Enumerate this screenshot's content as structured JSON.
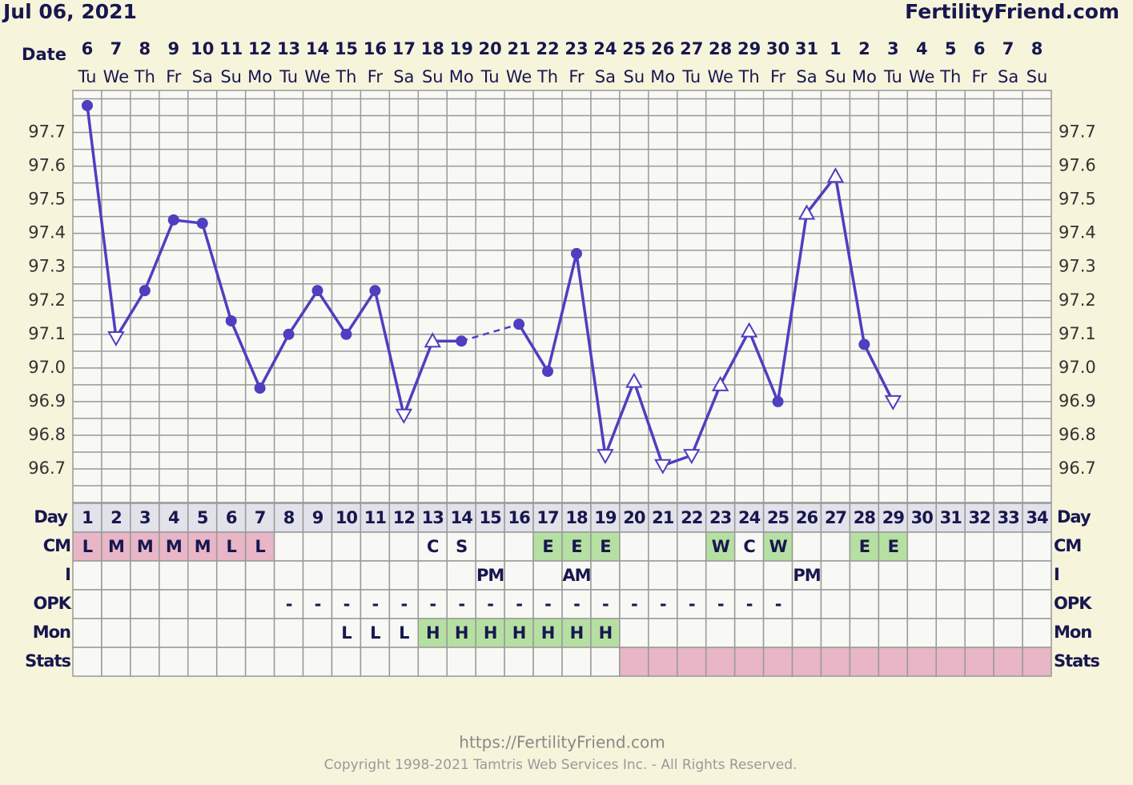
{
  "header": {
    "date": "Jul 06, 2021",
    "site": "FertilityFriend.com"
  },
  "footer": {
    "url": "https://FertilityFriend.com",
    "copyright": "Copyright 1998-2021 Tamtris Web Services Inc. - All Rights Reserved."
  },
  "chart_data": {
    "type": "line",
    "date_label": "Date",
    "day_label": "Day",
    "dates": [
      "6",
      "7",
      "8",
      "9",
      "10",
      "11",
      "12",
      "13",
      "14",
      "15",
      "16",
      "17",
      "18",
      "19",
      "20",
      "21",
      "22",
      "23",
      "24",
      "25",
      "26",
      "27",
      "28",
      "29",
      "30",
      "31",
      "1",
      "2",
      "3",
      "4",
      "5",
      "6",
      "7",
      "8"
    ],
    "weekdays": [
      "Tu",
      "We",
      "Th",
      "Fr",
      "Sa",
      "Su",
      "Mo",
      "Tu",
      "We",
      "Th",
      "Fr",
      "Sa",
      "Su",
      "Mo",
      "Tu",
      "We",
      "Th",
      "Fr",
      "Sa",
      "Su",
      "Mo",
      "Tu",
      "We",
      "Th",
      "Fr",
      "Sa",
      "Su",
      "Mo",
      "Tu",
      "We",
      "Th",
      "Fr",
      "Sa",
      "Su"
    ],
    "categories": [
      "1",
      "2",
      "3",
      "4",
      "5",
      "6",
      "7",
      "8",
      "9",
      "10",
      "11",
      "12",
      "13",
      "14",
      "15",
      "16",
      "17",
      "18",
      "19",
      "20",
      "21",
      "22",
      "23",
      "24",
      "25",
      "26",
      "27",
      "28",
      "29",
      "30",
      "31",
      "32",
      "33",
      "34"
    ],
    "values": [
      97.78,
      97.09,
      97.23,
      97.44,
      97.43,
      97.14,
      96.94,
      97.1,
      97.23,
      97.1,
      97.23,
      96.86,
      97.08,
      97.08,
      null,
      97.13,
      96.99,
      97.34,
      96.74,
      96.96,
      96.71,
      96.74,
      96.95,
      97.11,
      96.9,
      97.46,
      97.57,
      97.07,
      96.9,
      null,
      null,
      null,
      null,
      null
    ],
    "markers": [
      "circle",
      "down",
      "circle",
      "circle",
      "circle",
      "circle",
      "circle",
      "circle",
      "circle",
      "circle",
      "circle",
      "down",
      "up",
      "circle",
      null,
      "circle",
      "circle",
      "circle",
      "down",
      "up",
      "down",
      "down",
      "up",
      "up",
      "circle",
      "up",
      "up",
      "circle",
      "down",
      null,
      null,
      null,
      null,
      null
    ],
    "color": "#4d3fc0",
    "gap_bridge": "dashed",
    "ylim": [
      96.6,
      97.825
    ],
    "yticks": [
      {
        "value": 96.7,
        "label": "96.7"
      },
      {
        "value": 96.8,
        "label": "96.8"
      },
      {
        "value": 96.9,
        "label": "96.9"
      },
      {
        "value": 97.0,
        "label": "97.0"
      },
      {
        "value": 97.1,
        "label": "97.1"
      },
      {
        "value": 97.2,
        "label": "97.2"
      },
      {
        "value": 97.3,
        "label": "97.3"
      },
      {
        "value": 97.4,
        "label": "97.4"
      },
      {
        "value": 97.5,
        "label": "97.5"
      },
      {
        "value": 97.6,
        "label": "97.6"
      },
      {
        "value": 97.7,
        "label": "97.7"
      }
    ],
    "minor_yticks": [
      96.65,
      96.75,
      96.85,
      96.95,
      97.05,
      97.15,
      97.25,
      97.35,
      97.45,
      97.55,
      97.65,
      97.75,
      97.8
    ],
    "grid": true
  },
  "rows": [
    {
      "label": "CM",
      "cells": [
        "L",
        "M",
        "M",
        "M",
        "M",
        "L",
        "L",
        null,
        null,
        null,
        null,
        null,
        "C",
        "S",
        null,
        null,
        "E",
        "E",
        "E",
        null,
        null,
        null,
        "W",
        "C",
        "W",
        null,
        null,
        "E",
        "E",
        null,
        null,
        null,
        null,
        null
      ],
      "fills": [
        "#e8b6c6",
        "#e8b6c6",
        "#e8b6c6",
        "#e8b6c6",
        "#e8b6c6",
        "#e8b6c6",
        "#e8b6c6",
        null,
        null,
        null,
        null,
        null,
        null,
        null,
        null,
        null,
        "#b6e0a2",
        "#b6e0a2",
        "#b6e0a2",
        null,
        null,
        null,
        "#b6e0a2",
        null,
        "#b6e0a2",
        null,
        null,
        "#b6e0a2",
        "#b6e0a2",
        null,
        null,
        null,
        null,
        null
      ]
    },
    {
      "label": "I",
      "cells": [
        null,
        null,
        null,
        null,
        null,
        null,
        null,
        null,
        null,
        null,
        null,
        null,
        null,
        null,
        "PM",
        null,
        null,
        "AM",
        null,
        null,
        null,
        null,
        null,
        null,
        null,
        "PM",
        null,
        null,
        null,
        null,
        null,
        null,
        null,
        null
      ],
      "fills": [
        null,
        null,
        null,
        null,
        null,
        null,
        null,
        null,
        null,
        null,
        null,
        null,
        null,
        null,
        null,
        null,
        null,
        null,
        null,
        null,
        null,
        null,
        null,
        null,
        null,
        null,
        null,
        null,
        null,
        null,
        null,
        null,
        null,
        null
      ]
    },
    {
      "label": "OPK",
      "cells": [
        null,
        null,
        null,
        null,
        null,
        null,
        null,
        "-",
        "-",
        "-",
        "-",
        "-",
        "-",
        "-",
        "-",
        "-",
        "-",
        "-",
        "-",
        "-",
        "-",
        "-",
        "-",
        "-",
        "-",
        null,
        null,
        null,
        null,
        null,
        null,
        null,
        null,
        null
      ],
      "fills": [
        null,
        null,
        null,
        null,
        null,
        null,
        null,
        null,
        null,
        null,
        null,
        null,
        null,
        null,
        null,
        null,
        null,
        null,
        null,
        null,
        null,
        null,
        null,
        null,
        null,
        null,
        null,
        null,
        null,
        null,
        null,
        null,
        null,
        null
      ]
    },
    {
      "label": "Mon",
      "cells": [
        null,
        null,
        null,
        null,
        null,
        null,
        null,
        null,
        null,
        "L",
        "L",
        "L",
        "H",
        "H",
        "H",
        "H",
        "H",
        "H",
        "H",
        null,
        null,
        null,
        null,
        null,
        null,
        null,
        null,
        null,
        null,
        null,
        null,
        null,
        null,
        null
      ],
      "fills": [
        null,
        null,
        null,
        null,
        null,
        null,
        null,
        null,
        null,
        null,
        null,
        null,
        "#b6e0a2",
        "#b6e0a2",
        "#b6e0a2",
        "#b6e0a2",
        "#b6e0a2",
        "#b6e0a2",
        "#b6e0a2",
        null,
        null,
        null,
        null,
        null,
        null,
        null,
        null,
        null,
        null,
        null,
        null,
        null,
        null,
        null
      ]
    },
    {
      "label": "Stats",
      "cells": [
        null,
        null,
        null,
        null,
        null,
        null,
        null,
        null,
        null,
        null,
        null,
        null,
        null,
        null,
        null,
        null,
        null,
        null,
        null,
        null,
        null,
        null,
        null,
        null,
        null,
        null,
        null,
        null,
        null,
        null,
        null,
        null,
        null,
        null
      ],
      "fills": [
        null,
        null,
        null,
        null,
        null,
        null,
        null,
        null,
        null,
        null,
        null,
        null,
        null,
        null,
        null,
        null,
        null,
        null,
        null,
        "#e8b6c6",
        "#e8b6c6",
        "#e8b6c6",
        "#e8b6c6",
        "#e8b6c6",
        "#e8b6c6",
        "#e8b6c6",
        "#e8b6c6",
        "#e8b6c6",
        "#e8b6c6",
        "#e8b6c6",
        "#e8b6c6",
        "#e8b6c6",
        "#e8b6c6",
        "#e8b6c6"
      ]
    }
  ]
}
